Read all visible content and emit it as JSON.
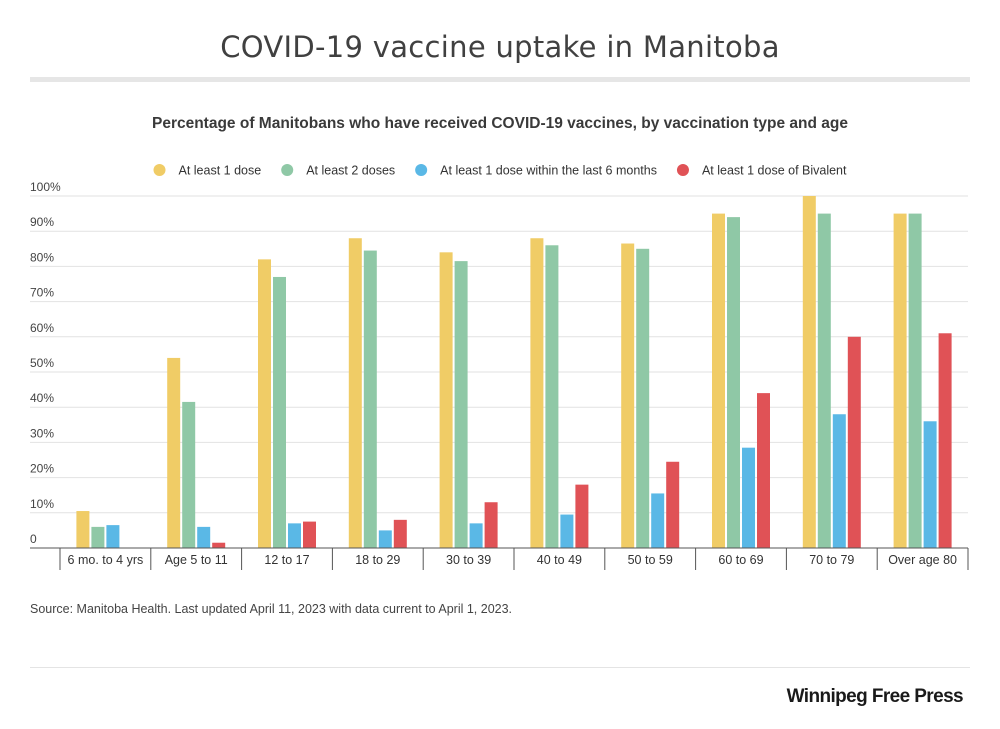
{
  "page": {
    "title": "COVID-19 vaccine uptake in Manitoba",
    "logo_text": "Winnipeg Free Press"
  },
  "chart_data": {
    "type": "bar",
    "title": "Percentage of Manitobans who have received COVID-19 vaccines, by vaccination type and age",
    "xlabel": "",
    "ylabel": "",
    "categories": [
      "6 mo. to 4 yrs",
      "Age 5 to 11",
      "12 to 17",
      "18 to 29",
      "30 to 39",
      "40 to 49",
      "50 to 59",
      "60 to 69",
      "70 to 79",
      "Over age 80"
    ],
    "ylim": [
      0,
      100
    ],
    "yticks": [
      0,
      10,
      20,
      30,
      40,
      50,
      60,
      70,
      80,
      90,
      100
    ],
    "ytick_labels": [
      "0",
      "10%",
      "20%",
      "30%",
      "40%",
      "50%",
      "60%",
      "70%",
      "80%",
      "90%",
      "100%"
    ],
    "grid": true,
    "legend_position": "top",
    "series": [
      {
        "name": "At least 1 dose",
        "color": "#f0cc66",
        "values": [
          10.5,
          54,
          82,
          88,
          84,
          88,
          86.5,
          95,
          100,
          95
        ]
      },
      {
        "name": "At least 2 doses",
        "color": "#8fc8a6",
        "values": [
          6,
          41.5,
          77,
          84.5,
          81.5,
          86,
          85,
          94,
          95,
          95
        ]
      },
      {
        "name": "At least 1 dose within the last 6 months",
        "color": "#5ab8e6",
        "values": [
          6.5,
          6,
          7,
          5,
          7,
          9.5,
          15.5,
          28.5,
          38,
          36
        ]
      },
      {
        "name": "At least 1 dose of Bivalent",
        "color": "#e05256",
        "values": [
          0,
          1.5,
          7.5,
          8,
          13,
          18,
          24.5,
          44,
          60,
          61
        ]
      }
    ],
    "source": "Source: Manitoba Health. Last updated April 11, 2023 with data current to April 1, 2023."
  }
}
